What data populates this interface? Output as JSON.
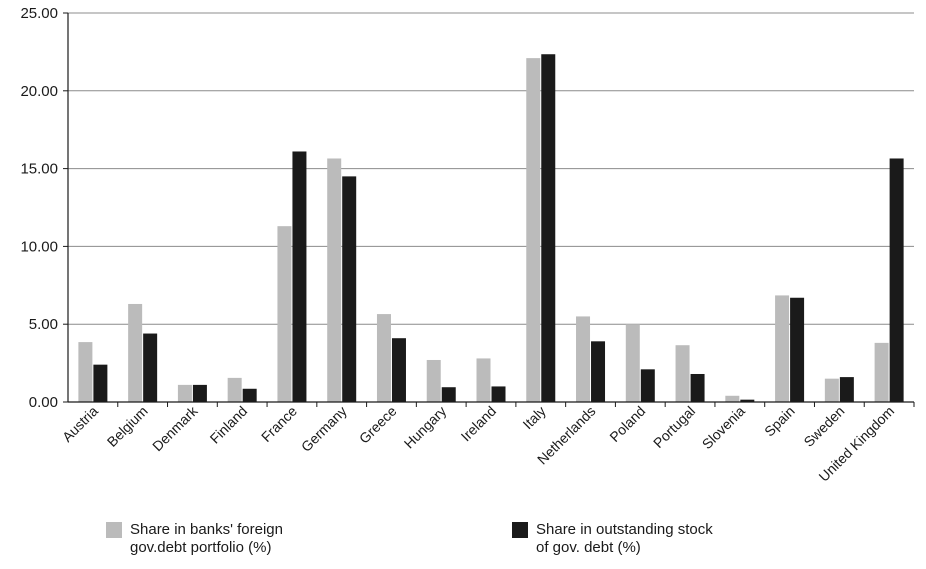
{
  "chart_data": {
    "type": "bar",
    "categories": [
      "Austria",
      "Belgium",
      "Denmark",
      "Finland",
      "France",
      "Germany",
      "Greece",
      "Hungary",
      "Ireland",
      "Italy",
      "Netherlands",
      "Poland",
      "Portugal",
      "Slovenia",
      "Spain",
      "Sweden",
      "United Kingdom"
    ],
    "series": [
      {
        "name": "Share in banks' foreign gov.debt portfolio (%)",
        "color": "#bbbbbb",
        "values": [
          3.85,
          6.3,
          1.1,
          1.55,
          11.3,
          15.65,
          5.65,
          2.7,
          2.8,
          22.1,
          5.5,
          5.0,
          3.65,
          0.4,
          6.85,
          1.5,
          3.8
        ]
      },
      {
        "name": "Share in outstanding stock of gov. debt (%)",
        "color": "#1a1a1a",
        "values": [
          2.4,
          4.4,
          1.1,
          0.85,
          16.1,
          14.5,
          4.1,
          0.95,
          1.0,
          22.35,
          3.9,
          2.1,
          1.8,
          0.15,
          6.7,
          1.6,
          15.65
        ]
      }
    ],
    "ylim": [
      0,
      25
    ],
    "yticks": [
      "0.00",
      "5.00",
      "10.00",
      "15.00",
      "20.00",
      "25.00"
    ],
    "grid": true,
    "legend_position": "bottom"
  }
}
